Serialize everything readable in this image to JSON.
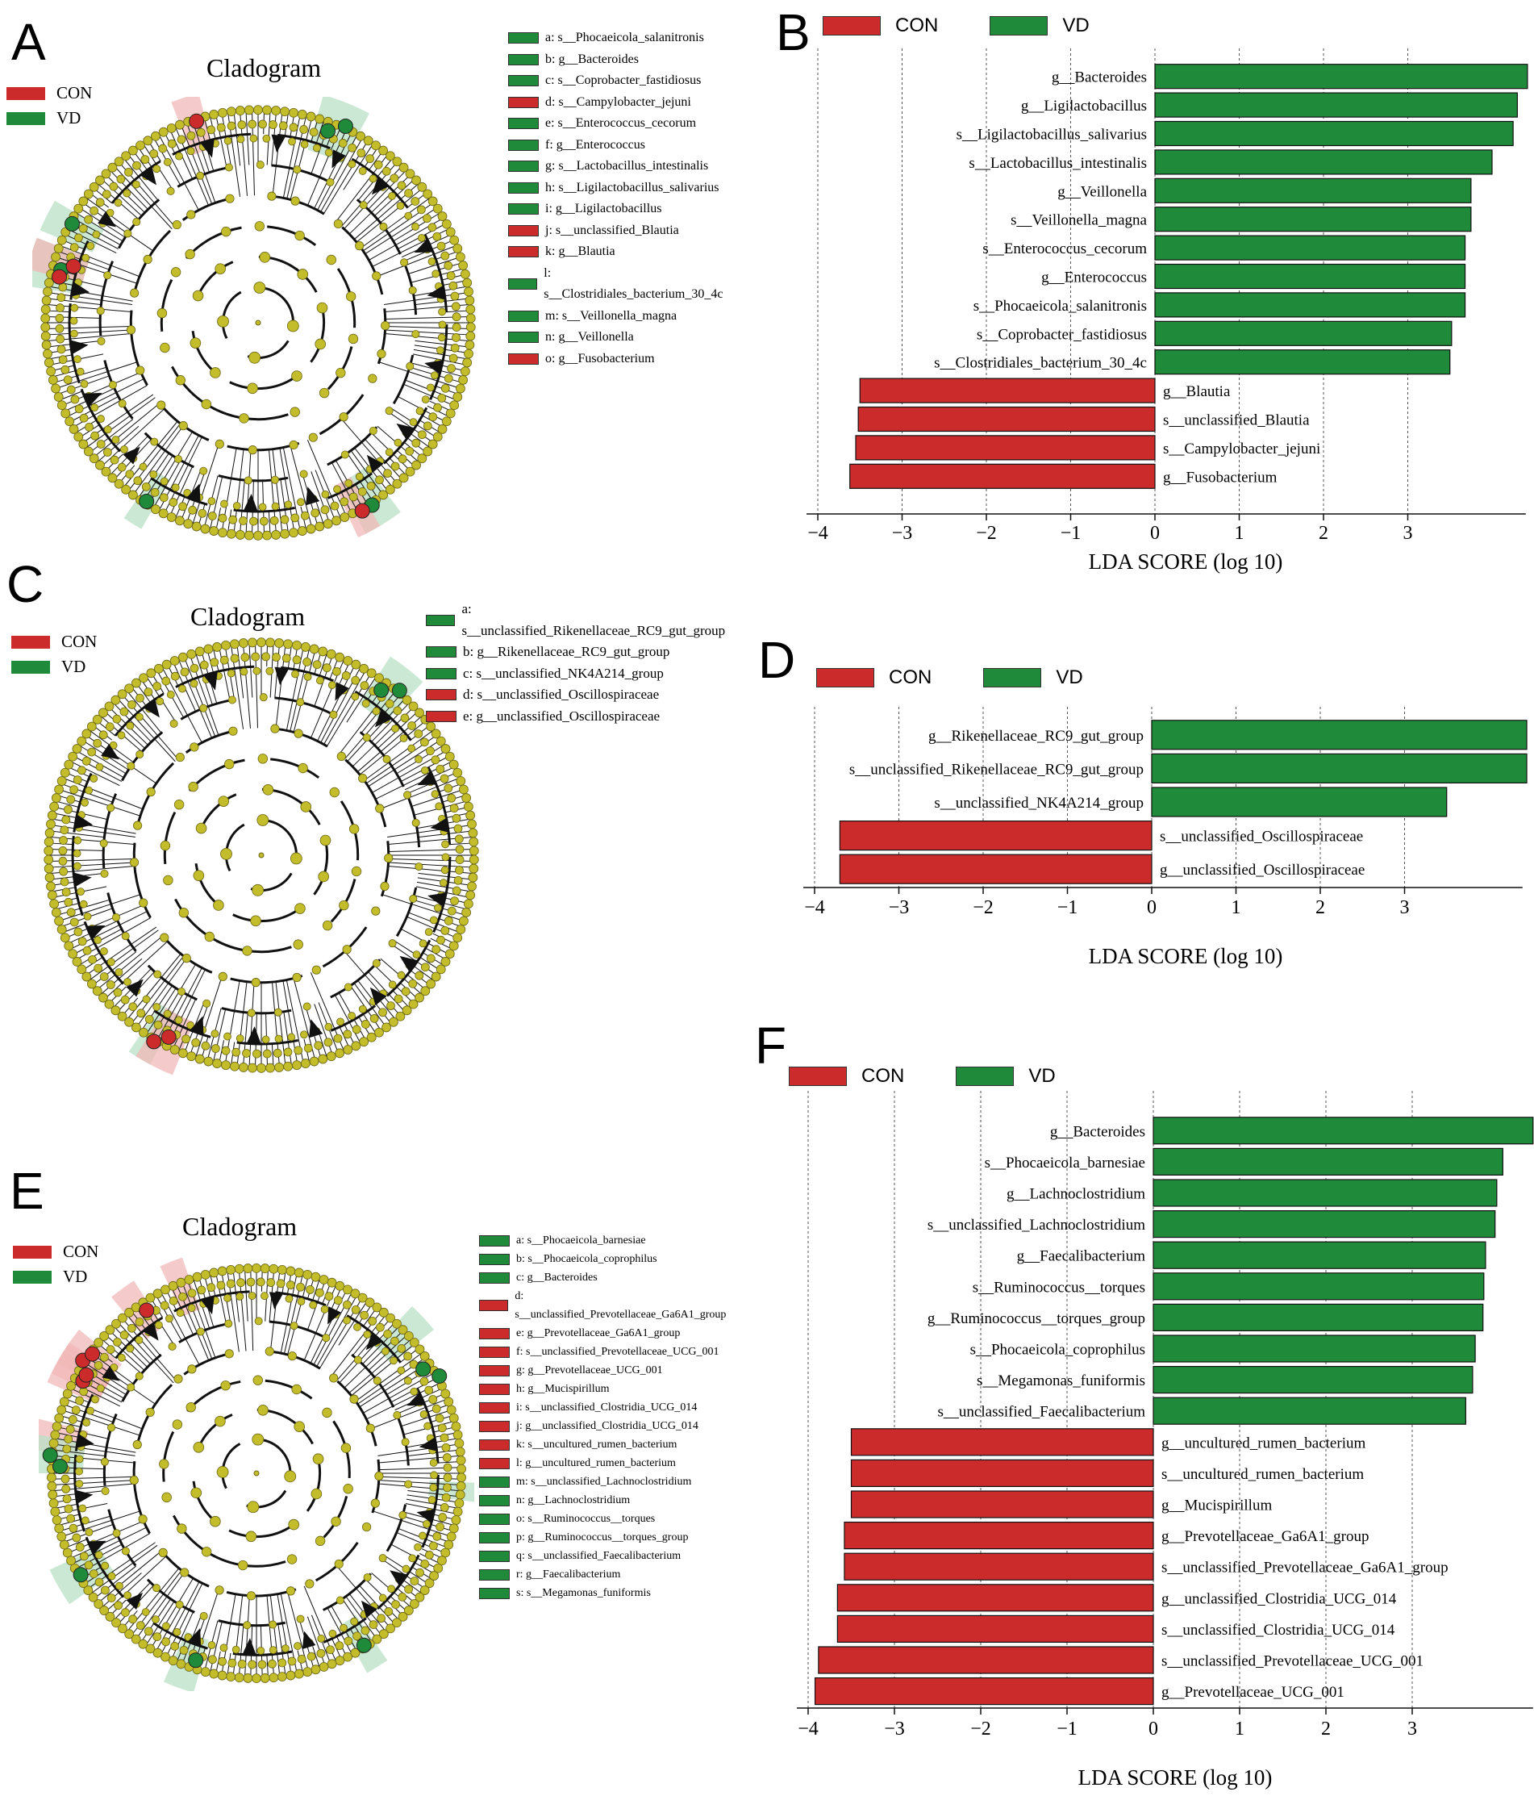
{
  "colors": {
    "con": "#cc2b2b",
    "vd": "#1f8a3a",
    "node": "#c3bd2b",
    "node_stroke": "#6b6614",
    "con_shade": "#f2b8b8",
    "vd_shade": "#b8e0c4"
  },
  "panels": {
    "A": {
      "letter": "A",
      "title": "Cladogram",
      "groups": [
        {
          "label": "CON",
          "color": "#cc2b2b"
        },
        {
          "label": "VD",
          "color": "#1f8a3a"
        }
      ],
      "taxa": [
        {
          "text": "a: s__Phocaeicola_salanitronis",
          "color": "#1f8a3a"
        },
        {
          "text": "b: g__Bacteroides",
          "color": "#1f8a3a"
        },
        {
          "text": "c: s__Coprobacter_fastidiosus",
          "color": "#1f8a3a"
        },
        {
          "text": "d: s__Campylobacter_jejuni",
          "color": "#cc2b2b"
        },
        {
          "text": "e: s__Enterococcus_cecorum",
          "color": "#1f8a3a"
        },
        {
          "text": "f: g__Enterococcus",
          "color": "#1f8a3a"
        },
        {
          "text": "g: s__Lactobacillus_intestinalis",
          "color": "#1f8a3a"
        },
        {
          "text": "h: s__Ligilactobacillus_salivarius",
          "color": "#1f8a3a"
        },
        {
          "text": "i: g__Ligilactobacillus",
          "color": "#1f8a3a"
        },
        {
          "text": "j: s__unclassified_Blautia",
          "color": "#cc2b2b"
        },
        {
          "text": "k: g__Blautia",
          "color": "#cc2b2b"
        },
        {
          "text": "l: s__Clostridiales_bacterium_30_4c",
          "color": "#1f8a3a"
        },
        {
          "text": "m: s__Veillonella_magna",
          "color": "#1f8a3a"
        },
        {
          "text": "n: g__Veillonella",
          "color": "#1f8a3a"
        },
        {
          "text": "o: g__Fusobacterium",
          "color": "#cc2b2b"
        }
      ]
    },
    "C": {
      "letter": "C",
      "title": "Cladogram",
      "groups": [
        {
          "label": "CON",
          "color": "#cc2b2b"
        },
        {
          "label": "VD",
          "color": "#1f8a3a"
        }
      ],
      "taxa": [
        {
          "text": "a: s__unclassified_Rikenellaceae_RC9_gut_group",
          "color": "#1f8a3a"
        },
        {
          "text": "b: g__Rikenellaceae_RC9_gut_group",
          "color": "#1f8a3a"
        },
        {
          "text": "c: s__unclassified_NK4A214_group",
          "color": "#1f8a3a"
        },
        {
          "text": "d: s__unclassified_Oscillospiraceae",
          "color": "#cc2b2b"
        },
        {
          "text": "e: g__unclassified_Oscillospiraceae",
          "color": "#cc2b2b"
        }
      ]
    },
    "E": {
      "letter": "E",
      "title": "Cladogram",
      "groups": [
        {
          "label": "CON",
          "color": "#cc2b2b"
        },
        {
          "label": "VD",
          "color": "#1f8a3a"
        }
      ],
      "taxa": [
        {
          "text": "a: s__Phocaeicola_barnesiae",
          "color": "#1f8a3a"
        },
        {
          "text": "b: s__Phocaeicola_coprophilus",
          "color": "#1f8a3a"
        },
        {
          "text": "c: g__Bacteroides",
          "color": "#1f8a3a"
        },
        {
          "text": "d: s__unclassified_Prevotellaceae_Ga6A1_group",
          "color": "#cc2b2b"
        },
        {
          "text": "e: g__Prevotellaceae_Ga6A1_group",
          "color": "#cc2b2b"
        },
        {
          "text": "f: s__unclassified_Prevotellaceae_UCG_001",
          "color": "#cc2b2b"
        },
        {
          "text": "g: g__Prevotellaceae_UCG_001",
          "color": "#cc2b2b"
        },
        {
          "text": "h: g__Mucispirillum",
          "color": "#cc2b2b"
        },
        {
          "text": "i: s__unclassified_Clostridia_UCG_014",
          "color": "#cc2b2b"
        },
        {
          "text": "j: g__unclassified_Clostridia_UCG_014",
          "color": "#cc2b2b"
        },
        {
          "text": "k: s__uncultured_rumen_bacterium",
          "color": "#cc2b2b"
        },
        {
          "text": "l: g__uncultured_rumen_bacterium",
          "color": "#cc2b2b"
        },
        {
          "text": "m: s__unclassified_Lachnoclostridium",
          "color": "#1f8a3a"
        },
        {
          "text": "n: g__Lachnoclostridium",
          "color": "#1f8a3a"
        },
        {
          "text": "o: s__Ruminococcus__torques",
          "color": "#1f8a3a"
        },
        {
          "text": "p: g__Ruminococcus__torques_group",
          "color": "#1f8a3a"
        },
        {
          "text": "q: s__unclassified_Faecalibacterium",
          "color": "#1f8a3a"
        },
        {
          "text": "r: g__Faecalibacterium",
          "color": "#1f8a3a"
        },
        {
          "text": "s: s__Megamonas_funiformis",
          "color": "#1f8a3a"
        }
      ]
    }
  },
  "chart_data": [
    {
      "panel": "B",
      "type": "bar",
      "orientation": "horizontal",
      "xlabel": "LDA SCORE (log 10)",
      "xlim": [
        -4,
        4.4
      ],
      "ticks": [
        -4,
        -3,
        -2,
        -1,
        0,
        1,
        2,
        3
      ],
      "legend": [
        {
          "label": "CON",
          "color": "#cc2b2b"
        },
        {
          "label": "VD",
          "color": "#1f8a3a"
        }
      ],
      "bars": [
        {
          "label": "g__Bacteroides",
          "value": 4.42,
          "group": "VD"
        },
        {
          "label": "g__Ligilactobacillus",
          "value": 4.3,
          "group": "VD"
        },
        {
          "label": "s__Ligilactobacillus_salivarius",
          "value": 4.25,
          "group": "VD"
        },
        {
          "label": "s__Lactobacillus_intestinalis",
          "value": 4.0,
          "group": "VD"
        },
        {
          "label": "g__Veillonella",
          "value": 3.75,
          "group": "VD"
        },
        {
          "label": "s__Veillonella_magna",
          "value": 3.75,
          "group": "VD"
        },
        {
          "label": "s__Enterococcus_cecorum",
          "value": 3.68,
          "group": "VD"
        },
        {
          "label": "g__Enterococcus",
          "value": 3.68,
          "group": "VD"
        },
        {
          "label": "s__Phocaeicola_salanitronis",
          "value": 3.68,
          "group": "VD"
        },
        {
          "label": "s__Coprobacter_fastidiosus",
          "value": 3.52,
          "group": "VD"
        },
        {
          "label": "s__Clostridiales_bacterium_30_4c",
          "value": 3.5,
          "group": "VD"
        },
        {
          "label": "g__Blautia",
          "value": -3.5,
          "group": "CON"
        },
        {
          "label": "s__unclassified_Blautia",
          "value": -3.52,
          "group": "CON"
        },
        {
          "label": "s__Campylobacter_jejuni",
          "value": -3.55,
          "group": "CON"
        },
        {
          "label": "g__Fusobacterium",
          "value": -3.62,
          "group": "CON"
        }
      ]
    },
    {
      "panel": "D",
      "type": "bar",
      "orientation": "horizontal",
      "xlabel": "LDA SCORE (log 10)",
      "xlim": [
        -4,
        4.4
      ],
      "ticks": [
        -4,
        -3,
        -2,
        -1,
        0,
        1,
        2,
        3
      ],
      "legend": [
        {
          "label": "CON",
          "color": "#cc2b2b"
        },
        {
          "label": "VD",
          "color": "#1f8a3a"
        }
      ],
      "bars": [
        {
          "label": "g__Rikenellaceae_RC9_gut_group",
          "value": 4.45,
          "group": "VD"
        },
        {
          "label": "s__unclassified_Rikenellaceae_RC9_gut_group",
          "value": 4.45,
          "group": "VD"
        },
        {
          "label": "s__unclassified_NK4A214_group",
          "value": 3.5,
          "group": "VD"
        },
        {
          "label": "s__unclassified_Oscillospiraceae",
          "value": -3.7,
          "group": "CON"
        },
        {
          "label": "g__unclassified_Oscillospiraceae",
          "value": -3.7,
          "group": "CON"
        }
      ]
    },
    {
      "panel": "F",
      "type": "bar",
      "orientation": "horizontal",
      "xlabel": "LDA SCORE (log 10)",
      "xlim": [
        -4,
        4.4
      ],
      "ticks": [
        -4,
        -3,
        -2,
        -1,
        0,
        1,
        2,
        3
      ],
      "legend": [
        {
          "label": "CON",
          "color": "#cc2b2b"
        },
        {
          "label": "VD",
          "color": "#1f8a3a"
        }
      ],
      "bars": [
        {
          "label": "g__Bacteroides",
          "value": 4.4,
          "group": "VD"
        },
        {
          "label": "s__Phocaeicola_barnesiae",
          "value": 4.05,
          "group": "VD"
        },
        {
          "label": "g__Lachnoclostridium",
          "value": 3.98,
          "group": "VD"
        },
        {
          "label": "s__unclassified_Lachnoclostridium",
          "value": 3.96,
          "group": "VD"
        },
        {
          "label": "g__Faecalibacterium",
          "value": 3.85,
          "group": "VD"
        },
        {
          "label": "s__Ruminococcus__torques",
          "value": 3.83,
          "group": "VD"
        },
        {
          "label": "g__Ruminococcus__torques_group",
          "value": 3.82,
          "group": "VD"
        },
        {
          "label": "s__Phocaeicola_coprophilus",
          "value": 3.73,
          "group": "VD"
        },
        {
          "label": "s__Megamonas_funiformis",
          "value": 3.7,
          "group": "VD"
        },
        {
          "label": "s__unclassified_Faecalibacterium",
          "value": 3.62,
          "group": "VD"
        },
        {
          "label": "g__uncultured_rumen_bacterium",
          "value": -3.5,
          "group": "CON"
        },
        {
          "label": "s__uncultured_rumen_bacterium",
          "value": -3.5,
          "group": "CON"
        },
        {
          "label": "g__Mucispirillum",
          "value": -3.5,
          "group": "CON"
        },
        {
          "label": "g__Prevotellaceae_Ga6A1_group",
          "value": -3.58,
          "group": "CON"
        },
        {
          "label": "s__unclassified_Prevotellaceae_Ga6A1_group",
          "value": -3.58,
          "group": "CON"
        },
        {
          "label": "g__unclassified_Clostridia_UCG_014",
          "value": -3.66,
          "group": "CON"
        },
        {
          "label": "s__unclassified_Clostridia_UCG_014",
          "value": -3.66,
          "group": "CON"
        },
        {
          "label": "s__unclassified_Prevotellaceae_UCG_001",
          "value": -3.88,
          "group": "CON"
        },
        {
          "label": "g__Prevotellaceae_UCG_001",
          "value": -3.92,
          "group": "CON"
        }
      ]
    }
  ]
}
